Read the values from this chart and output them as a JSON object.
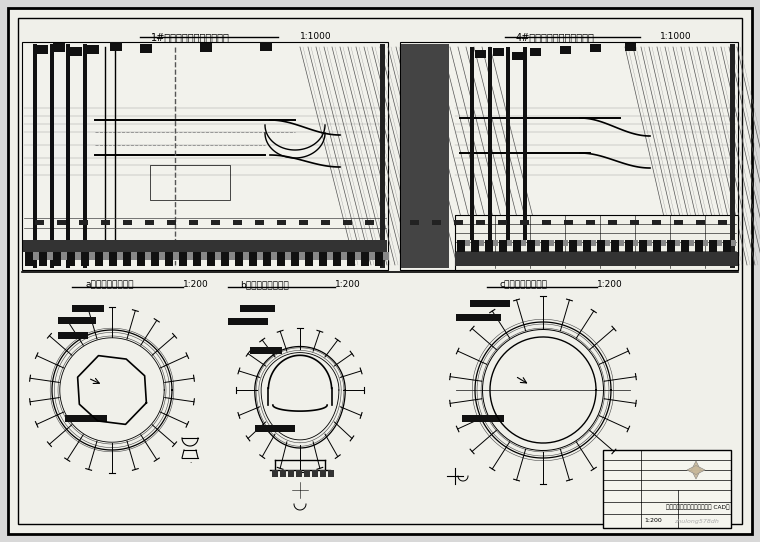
{
  "bg_color": "#d8d8d8",
  "inner_bg": "#f0f0ea",
  "line_color": "#000000",
  "title1": "1#机引水隧洞开挖纵剖面图",
  "title2": "4#机引水隧洞开挖纵剖面图",
  "scale1": "1:1000",
  "scale2": "1:1000",
  "title_a": "a型断面开挖支护图",
  "title_b": "b型断面开挖支护图",
  "title_c": "c型断面开挖支护图",
  "scale_abc": "1:200",
  "footer_text": "地下电站引水隧洞开挖支护图 CAD图",
  "watermark_text": "zhulong578dh",
  "logo_color": "#c8b89a"
}
